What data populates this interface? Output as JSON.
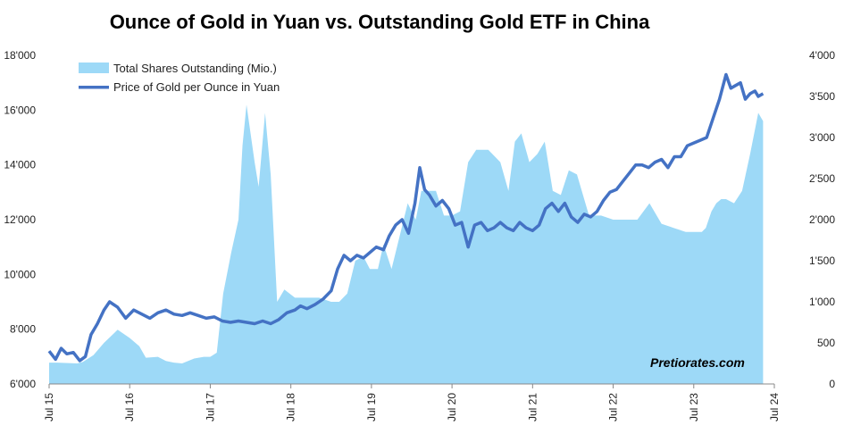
{
  "chart_data": {
    "type": "area",
    "title": "Ounce of Gold in Yuan vs. Outstanding Gold ETF in China",
    "watermark": "Pretiorates.com",
    "x_ticks": [
      "Jul 15",
      "Jul 16",
      "Jul 17",
      "Jul 18",
      "Jul 19",
      "Jul 20",
      "Jul 21",
      "Jul 22",
      "Jul 23",
      "Jul 24"
    ],
    "y_left": {
      "min": 6000,
      "max": 18000,
      "ticks": [
        "6'000",
        "8'000",
        "10'000",
        "12'000",
        "14'000",
        "16'000",
        "18'000"
      ]
    },
    "y_right": {
      "min": 0,
      "max": 4000,
      "ticks": [
        "0",
        "500",
        "1'000",
        "1'500",
        "2'000",
        "2'500",
        "3'000",
        "3'500",
        "4'000"
      ]
    },
    "legend_position": "top-left",
    "grid": false,
    "series": [
      {
        "name": "Total Shares Outstanding (Mio.)",
        "kind": "area",
        "axis": "right",
        "color": "#9dd9f7",
        "x": [
          2015.5,
          2015.6,
          2015.85,
          2015.92,
          2016.05,
          2016.18,
          2016.35,
          2016.5,
          2016.62,
          2016.7,
          2016.85,
          2016.95,
          2017.05,
          2017.15,
          2017.3,
          2017.42,
          2017.5,
          2017.58,
          2017.66,
          2017.76,
          2017.85,
          2017.9,
          2017.95,
          2018.05,
          2018.1,
          2018.18,
          2018.25,
          2018.33,
          2018.42,
          2018.55,
          2018.7,
          2018.85,
          2019.0,
          2019.1,
          2019.2,
          2019.3,
          2019.4,
          2019.48,
          2019.58,
          2019.65,
          2019.75,
          2019.85,
          2019.95,
          2020.05,
          2020.12,
          2020.2,
          2020.3,
          2020.4,
          2020.5,
          2020.6,
          2020.7,
          2020.8,
          2020.95,
          2021.1,
          2021.2,
          2021.28,
          2021.36,
          2021.46,
          2021.56,
          2021.65,
          2021.75,
          2021.85,
          2021.95,
          2022.05,
          2022.2,
          2022.35,
          2022.5,
          2022.65,
          2022.8,
          2022.95,
          2023.1,
          2023.25,
          2023.4,
          2023.5,
          2023.6,
          2023.65,
          2023.72,
          2023.78,
          2023.84,
          2023.9,
          2024.0,
          2024.1,
          2024.2,
          2024.3,
          2024.36
        ],
        "values": [
          260,
          260,
          250,
          270,
          350,
          500,
          660,
          560,
          460,
          320,
          330,
          280,
          260,
          250,
          310,
          330,
          330,
          380,
          1100,
          1600,
          2000,
          2900,
          3400,
          2700,
          2400,
          3300,
          2550,
          1000,
          1150,
          1050,
          1050,
          1050,
          1000,
          1000,
          1100,
          1500,
          1550,
          1400,
          1400,
          1700,
          1400,
          1800,
          2200,
          2000,
          2350,
          2350,
          2350,
          2050,
          2050,
          2100,
          2700,
          2850,
          2850,
          2700,
          2350,
          2950,
          3050,
          2700,
          2800,
          2950,
          2350,
          2300,
          2600,
          2550,
          2050,
          2050,
          2000,
          2000,
          2000,
          2200,
          1950,
          1900,
          1850,
          1850,
          1850,
          1900,
          2100,
          2200,
          2250,
          2250,
          2200,
          2350,
          2800,
          3300,
          3200
        ]
      },
      {
        "name": "Price of Gold per Ounce in Yuan",
        "kind": "line",
        "axis": "left",
        "color": "#4472c4",
        "x": [
          2015.5,
          2015.58,
          2015.65,
          2015.72,
          2015.8,
          2015.88,
          2015.95,
          2016.02,
          2016.1,
          2016.18,
          2016.25,
          2016.35,
          2016.45,
          2016.55,
          2016.65,
          2016.75,
          2016.85,
          2016.95,
          2017.05,
          2017.15,
          2017.25,
          2017.35,
          2017.45,
          2017.55,
          2017.65,
          2017.75,
          2017.85,
          2017.95,
          2018.05,
          2018.15,
          2018.25,
          2018.35,
          2018.45,
          2018.55,
          2018.62,
          2018.7,
          2018.8,
          2018.9,
          2019.0,
          2019.08,
          2019.16,
          2019.24,
          2019.32,
          2019.4,
          2019.48,
          2019.56,
          2019.65,
          2019.72,
          2019.8,
          2019.88,
          2019.96,
          2020.04,
          2020.1,
          2020.16,
          2020.22,
          2020.3,
          2020.38,
          2020.46,
          2020.54,
          2020.62,
          2020.7,
          2020.78,
          2020.86,
          2020.94,
          2021.02,
          2021.1,
          2021.18,
          2021.26,
          2021.34,
          2021.42,
          2021.5,
          2021.58,
          2021.66,
          2021.74,
          2021.82,
          2021.9,
          2021.98,
          2022.06,
          2022.14,
          2022.22,
          2022.3,
          2022.38,
          2022.46,
          2022.54,
          2022.62,
          2022.7,
          2022.78,
          2022.86,
          2022.94,
          2023.02,
          2023.1,
          2023.18,
          2023.26,
          2023.34,
          2023.42,
          2023.5,
          2023.58,
          2023.66,
          2023.74,
          2023.82,
          2023.9,
          2023.96,
          2024.02,
          2024.08,
          2024.14,
          2024.2,
          2024.26,
          2024.3,
          2024.36
        ],
        "values": [
          7200,
          6900,
          7300,
          7100,
          7150,
          6850,
          7000,
          7800,
          8200,
          8700,
          9000,
          8800,
          8400,
          8700,
          8550,
          8400,
          8600,
          8700,
          8550,
          8500,
          8600,
          8500,
          8400,
          8450,
          8300,
          8250,
          8300,
          8250,
          8200,
          8300,
          8200,
          8350,
          8600,
          8700,
          8850,
          8750,
          8900,
          9100,
          9400,
          10200,
          10700,
          10500,
          10700,
          10600,
          10800,
          11000,
          10900,
          11400,
          11800,
          12000,
          11500,
          12600,
          13900,
          13100,
          12900,
          12500,
          12700,
          12400,
          11800,
          11900,
          11000,
          11800,
          11900,
          11600,
          11700,
          11900,
          11700,
          11600,
          11900,
          11700,
          11600,
          11800,
          12400,
          12600,
          12300,
          12600,
          12100,
          11900,
          12200,
          12100,
          12300,
          12700,
          13000,
          13100,
          13400,
          13700,
          14000,
          14000,
          13900,
          14100,
          14200,
          13900,
          14300,
          14300,
          14700,
          14800,
          14900,
          15000,
          15700,
          16400,
          17300,
          16800,
          16900,
          17000,
          16400,
          16600,
          16700,
          16500,
          16600
        ]
      }
    ]
  }
}
